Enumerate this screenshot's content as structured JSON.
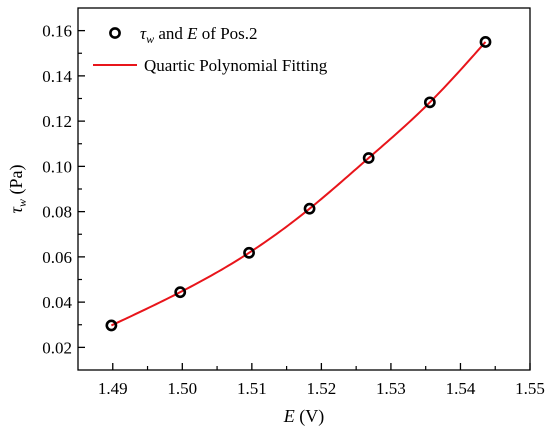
{
  "chart_data": {
    "type": "scatter",
    "xlim": [
      1.485,
      1.55
    ],
    "ylim": [
      0.01,
      0.17
    ],
    "xticks": [
      "1.49",
      "1.50",
      "1.51",
      "1.52",
      "1.53",
      "1.54",
      "1.55"
    ],
    "yticks": [
      "0.02",
      "0.04",
      "0.06",
      "0.08",
      "0.10",
      "0.12",
      "0.14",
      "0.16"
    ],
    "xlabel": {
      "var": "E",
      "unit": " (V)"
    },
    "ylabel": {
      "var": "τ",
      "sub": "w",
      "unit": " (Pa)"
    },
    "legend_position": "top-left",
    "series": [
      {
        "kind": "markers",
        "legend": {
          "var1": "τ",
          "sub": "w",
          "mid": " and ",
          "var2": "E",
          "tail": " of Pos.2"
        },
        "color": "#000000",
        "x": [
          1.4898,
          1.4997,
          1.5096,
          1.5183,
          1.5268,
          1.5356,
          1.5436
        ],
        "y": [
          0.0297,
          0.0444,
          0.0618,
          0.0813,
          0.1037,
          0.1283,
          0.155
        ]
      },
      {
        "kind": "fit-line",
        "legend_text": "Quartic Polynomial Fitting",
        "color": "#e8151b",
        "x": [
          1.4898,
          1.4997,
          1.5096,
          1.5183,
          1.5268,
          1.5356,
          1.5436
        ],
        "y": [
          0.0297,
          0.0444,
          0.0618,
          0.0813,
          0.1037,
          0.1283,
          0.155
        ]
      }
    ]
  }
}
